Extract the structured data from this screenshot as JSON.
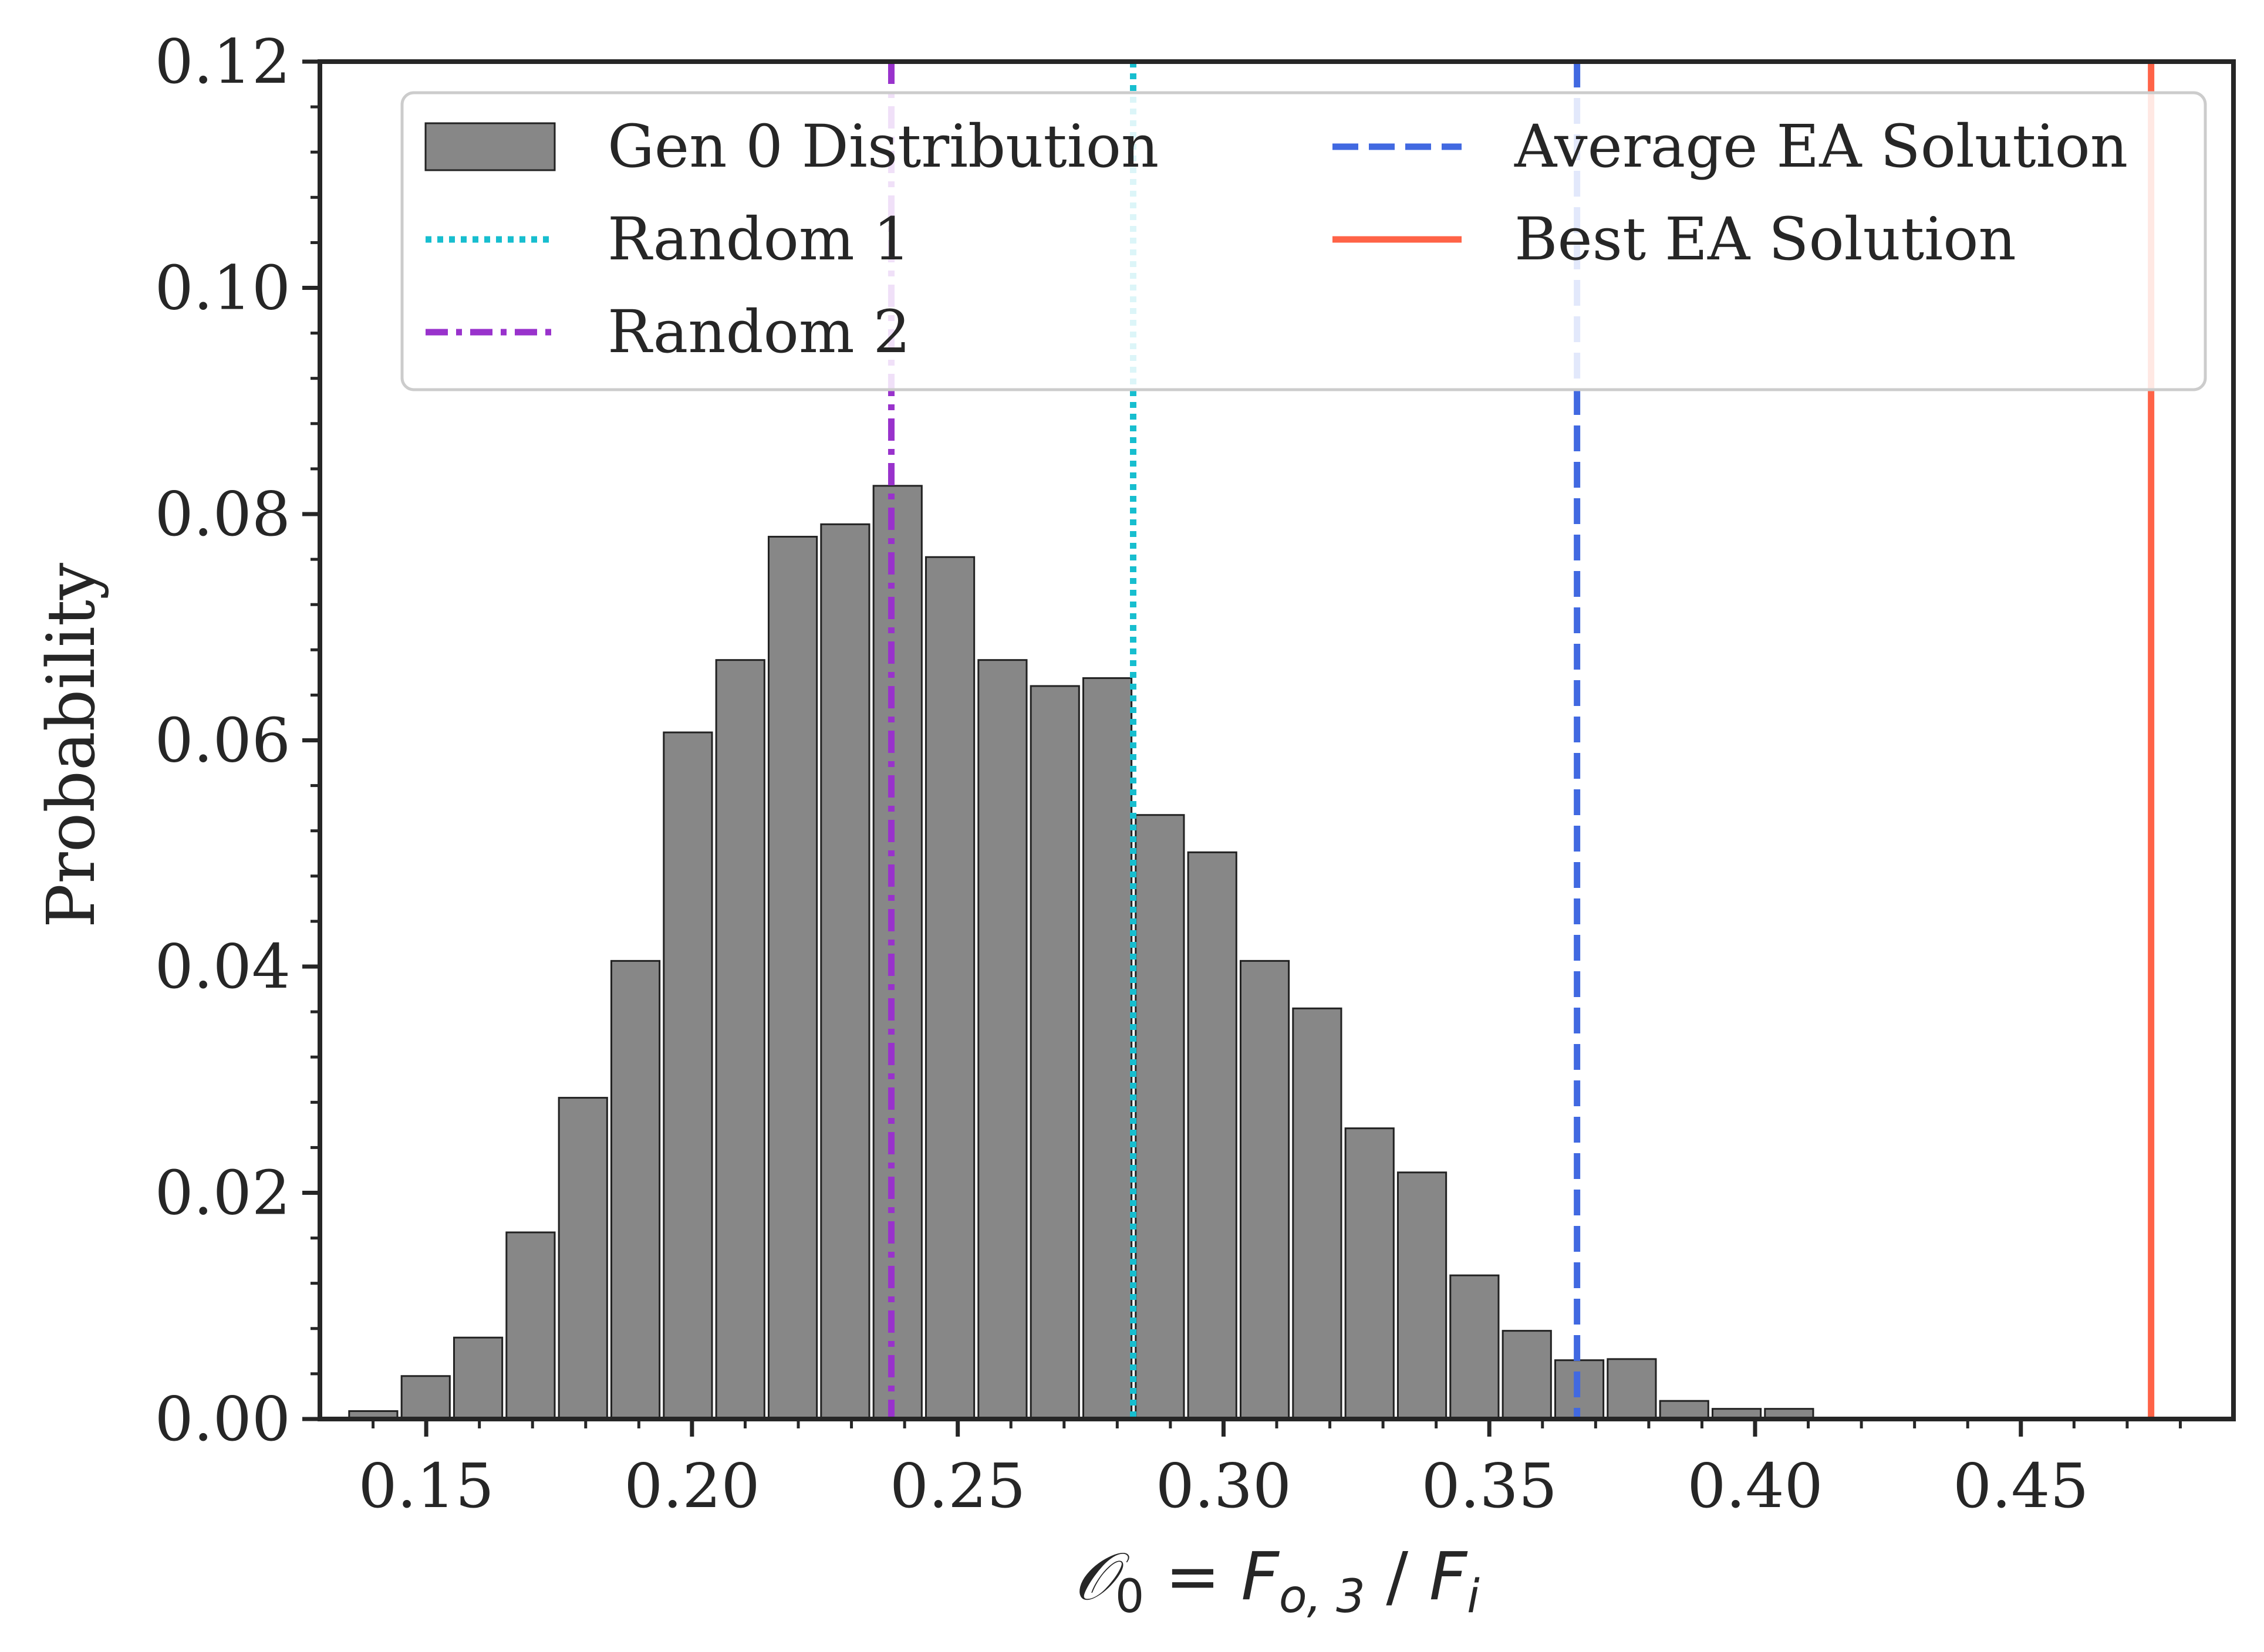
{
  "chart_data": {
    "type": "bar",
    "title": "",
    "xlabel": {
      "full": "𝒪0 = Fo, 3 / Fi",
      "parts": [
        {
          "text": "𝒪",
          "style": "script"
        },
        {
          "text": "0",
          "style": "sub"
        },
        {
          "text": " = ",
          "style": "normal"
        },
        {
          "text": "F",
          "style": "italic"
        },
        {
          "text": "o, 3",
          "style": "sub"
        },
        {
          "text": " / ",
          "style": "normal"
        },
        {
          "text": "F",
          "style": "italic"
        },
        {
          "text": "i",
          "style": "sub"
        }
      ]
    },
    "ylabel": "Probability",
    "xlim": [
      0.13,
      0.49
    ],
    "ylim": [
      0.0,
      0.12
    ],
    "xticks": [
      0.15,
      0.2,
      0.25,
      0.3,
      0.35,
      0.4,
      0.45
    ],
    "xtick_labels": [
      "0.15",
      "0.20",
      "0.25",
      "0.30",
      "0.35",
      "0.40",
      "0.45"
    ],
    "xminor_step": 0.01,
    "yticks": [
      0.0,
      0.02,
      0.04,
      0.06,
      0.08,
      0.1,
      0.12
    ],
    "ytick_labels": [
      "0.00",
      "0.02",
      "0.04",
      "0.06",
      "0.08",
      "0.10",
      "0.12"
    ],
    "yminor_step": 0.004,
    "grid": false,
    "legend_position": "top-right",
    "histogram": {
      "name": "Gen 0 Distribution",
      "color": "#878787",
      "edgecolor": "#222222",
      "bin_start": 0.1355,
      "bin_width": 0.009865,
      "bar_fraction": 0.92,
      "values": [
        0.0007,
        0.0038,
        0.0072,
        0.0165,
        0.0284,
        0.0405,
        0.0607,
        0.0671,
        0.078,
        0.0791,
        0.0825,
        0.0762,
        0.0671,
        0.0648,
        0.0655,
        0.0534,
        0.0501,
        0.0405,
        0.0363,
        0.0257,
        0.0218,
        0.0127,
        0.0078,
        0.0052,
        0.0053,
        0.0016,
        0.0009,
        0.0009
      ]
    },
    "vlines": [
      {
        "name": "Random 1",
        "x": 0.283,
        "color": "#17becf",
        "style": "dotted"
      },
      {
        "name": "Random 2",
        "x": 0.2375,
        "color": "#9932cc",
        "style": "dashdot"
      },
      {
        "name": "Average EA Solution",
        "x": 0.3665,
        "color": "#4169e1",
        "style": "dashed"
      },
      {
        "name": "Best EA Solution",
        "x": 0.4745,
        "color": "#ff6347",
        "style": "solid"
      }
    ],
    "legend": [
      {
        "label": "Gen 0 Distribution",
        "kind": "patch",
        "color": "#878787"
      },
      {
        "label": "Random 1",
        "kind": "line",
        "color": "#17becf",
        "style": "dotted"
      },
      {
        "label": "Random 2",
        "kind": "line",
        "color": "#9932cc",
        "style": "dashdot"
      },
      {
        "label": "Average EA Solution",
        "kind": "line",
        "color": "#4169e1",
        "style": "dashed"
      },
      {
        "label": "Best EA Solution",
        "kind": "line",
        "color": "#ff6347",
        "style": "solid"
      }
    ]
  }
}
